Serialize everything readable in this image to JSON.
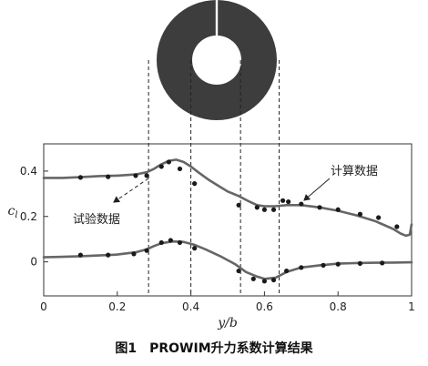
{
  "caption": "图1　PROWIM升力系数计算结果",
  "annotations": {
    "experiment": "试验数据",
    "computed": "计算数据"
  },
  "colors": {
    "curve": "#666666",
    "points": "#1a1a1a",
    "propeller_disk": "#3d3d3d"
  },
  "icons": {
    "propeller_disk": "propeller-disk-icon"
  },
  "chart_data": {
    "type": "line",
    "xlabel": "y/b",
    "ylabel": "c_l",
    "xlim": [
      0,
      1
    ],
    "ylim": [
      -0.15,
      0.52
    ],
    "x_ticks": [
      0,
      0.2,
      0.4,
      0.6,
      0.8,
      1
    ],
    "x_tick_labels": [
      "0",
      "0.2",
      "0.4",
      "0.6",
      "0.8",
      "1"
    ],
    "y_ticks": [
      0,
      0.2,
      0.4
    ],
    "y_tick_labels": [
      "0",
      "0.2",
      "0.4"
    ],
    "grid": false,
    "reference_lines_x": [
      0.285,
      0.4,
      0.535,
      0.64
    ],
    "series": [
      {
        "kind": "line",
        "x": [
          0,
          0.05,
          0.1,
          0.15,
          0.2,
          0.25,
          0.28,
          0.3,
          0.32,
          0.34,
          0.36,
          0.38,
          0.4,
          0.42,
          0.45,
          0.48,
          0.5,
          0.53,
          0.56,
          0.58,
          0.6,
          0.63,
          0.66,
          0.7,
          0.75,
          0.8,
          0.85,
          0.9,
          0.95,
          0.97,
          0.985,
          0.995,
          1.0
        ],
        "y": [
          0.37,
          0.37,
          0.373,
          0.378,
          0.38,
          0.385,
          0.395,
          0.41,
          0.43,
          0.445,
          0.45,
          0.44,
          0.42,
          0.395,
          0.36,
          0.33,
          0.31,
          0.29,
          0.265,
          0.25,
          0.245,
          0.245,
          0.25,
          0.25,
          0.24,
          0.225,
          0.205,
          0.18,
          0.145,
          0.125,
          0.115,
          0.12,
          0.165
        ]
      },
      {
        "kind": "scatter",
        "x": [
          0.1,
          0.175,
          0.25,
          0.28,
          0.32,
          0.34,
          0.37,
          0.41,
          0.53,
          0.58,
          0.6,
          0.625,
          0.65,
          0.665,
          0.7,
          0.75,
          0.8,
          0.86,
          0.91,
          0.96
        ],
        "y": [
          0.372,
          0.375,
          0.38,
          0.38,
          0.42,
          0.44,
          0.41,
          0.345,
          0.25,
          0.24,
          0.23,
          0.23,
          0.27,
          0.265,
          0.255,
          0.24,
          0.23,
          0.21,
          0.195,
          0.155
        ]
      },
      {
        "kind": "line",
        "x": [
          0,
          0.05,
          0.1,
          0.15,
          0.2,
          0.25,
          0.28,
          0.3,
          0.32,
          0.35,
          0.38,
          0.41,
          0.44,
          0.48,
          0.52,
          0.55,
          0.58,
          0.6,
          0.63,
          0.66,
          0.7,
          0.75,
          0.8,
          0.85,
          0.9,
          0.95,
          1.0
        ],
        "y": [
          0.02,
          0.022,
          0.025,
          0.028,
          0.032,
          0.042,
          0.055,
          0.07,
          0.082,
          0.09,
          0.088,
          0.075,
          0.055,
          0.025,
          -0.01,
          -0.045,
          -0.065,
          -0.075,
          -0.07,
          -0.045,
          -0.025,
          -0.015,
          -0.008,
          -0.005,
          -0.004,
          -0.003,
          -0.002
        ]
      },
      {
        "kind": "scatter",
        "x": [
          0.1,
          0.175,
          0.245,
          0.28,
          0.32,
          0.345,
          0.37,
          0.41,
          0.53,
          0.57,
          0.6,
          0.625,
          0.66,
          0.7,
          0.76,
          0.8,
          0.86,
          0.92
        ],
        "y": [
          0.03,
          0.03,
          0.035,
          0.05,
          0.085,
          0.095,
          0.085,
          0.06,
          -0.04,
          -0.075,
          -0.085,
          -0.08,
          -0.04,
          -0.025,
          -0.015,
          -0.01,
          -0.007,
          -0.005
        ]
      }
    ]
  }
}
